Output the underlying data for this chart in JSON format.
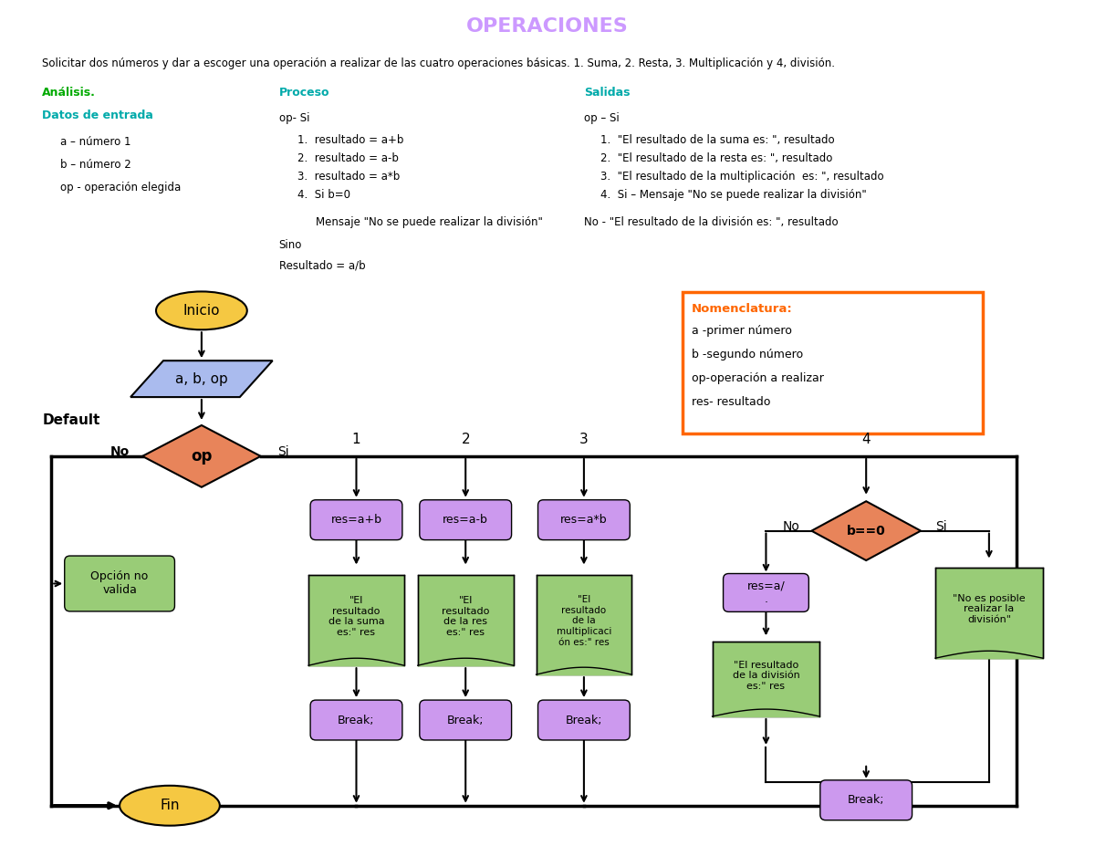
{
  "title": "OPERACIONES",
  "title_color": "#cc99ff",
  "bg_color": "#ffffff",
  "subtitle": "Solicitar dos números y dar a escoger una operación a realizar de las cuatro operaciones básicas. 1. Suma, 2. Resta, 3. Multiplicación y 4, división.",
  "analysis_label": "Análisis.",
  "analisis_color": "#00aa00",
  "datos_label": "Datos de entrada",
  "datos_color": "#00aaaa",
  "proceso_label": "Proceso",
  "proceso_color": "#00aaaa",
  "salidas_label": "Salidas",
  "salidas_color": "#00aaaa",
  "nomenclatura_title": "Nomenclatura:",
  "nomenclatura_title_color": "#ff6600",
  "nomenclatura_lines": [
    "a -primer número",
    "b -segundo número",
    "op-operación a realizar",
    "res- resultado"
  ],
  "nomenclatura_border_color": "#ff6600",
  "inicio_color": "#f5c842",
  "input_color": "#aabbee",
  "decision_color": "#e8845a",
  "process_purple": "#cc99ee",
  "output_green": "#99cc77",
  "fin_color": "#f5c842",
  "default_text": "Default"
}
